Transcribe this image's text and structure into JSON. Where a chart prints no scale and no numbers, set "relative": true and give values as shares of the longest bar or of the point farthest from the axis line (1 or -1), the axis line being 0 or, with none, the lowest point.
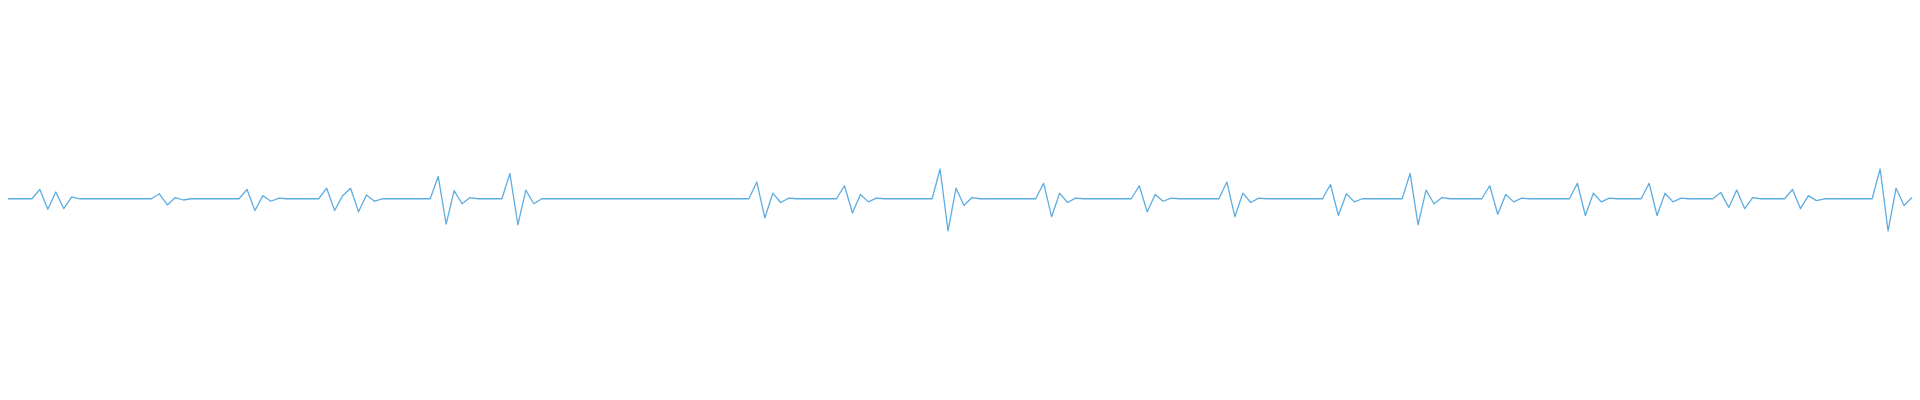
{
  "chart_data": {
    "type": "line",
    "relative": true,
    "color": "#5dade2",
    "grid": false,
    "legend": false,
    "marker": "none",
    "categories": [
      null,
      null,
      null,
      null,
      null,
      null,
      null,
      null,
      null,
      null,
      null,
      null,
      null,
      null,
      null,
      null,
      null,
      null,
      null,
      null,
      null,
      null,
      null,
      null,
      null,
      null,
      null,
      null,
      null,
      null,
      null,
      null,
      null,
      null,
      null,
      null,
      null,
      null,
      null,
      null,
      null,
      null,
      null,
      null,
      null,
      null,
      null,
      null,
      null,
      null,
      null,
      null,
      null,
      null,
      null,
      null,
      null,
      null,
      null,
      null,
      null,
      null,
      null,
      null,
      null,
      null,
      null,
      null,
      null,
      null,
      null,
      null,
      null,
      null,
      null,
      null,
      null,
      null,
      null,
      null,
      null,
      null,
      null,
      null,
      null,
      null,
      null,
      null,
      null,
      null,
      null,
      null,
      null,
      null,
      null,
      null,
      null,
      null,
      null,
      null,
      null,
      null,
      null,
      null,
      null,
      null,
      null,
      null,
      null,
      null,
      null,
      null,
      null,
      null,
      null,
      null,
      null,
      null,
      null,
      null,
      null,
      null,
      null,
      null,
      null,
      null,
      null,
      null,
      null,
      null,
      null,
      null,
      null,
      null,
      null,
      null,
      null,
      null,
      null,
      null,
      null,
      null,
      null,
      null,
      null,
      null,
      null,
      null,
      null,
      null,
      null,
      null,
      null,
      null,
      null,
      null,
      null,
      null,
      null,
      null,
      null,
      null,
      null,
      null,
      null,
      null,
      null,
      null,
      null,
      null,
      null,
      null,
      null,
      null,
      null,
      null,
      null,
      null,
      null,
      null,
      null,
      null,
      null,
      null,
      null,
      null,
      null,
      null,
      null,
      null,
      null,
      null,
      null,
      null,
      null,
      null,
      null,
      null,
      null,
      null,
      null,
      null,
      null,
      null,
      null,
      null,
      null,
      null,
      null,
      null,
      null,
      null,
      null,
      null,
      null,
      null,
      null,
      null,
      null,
      null,
      null,
      null,
      null,
      null,
      null,
      null,
      null,
      null,
      null,
      null,
      null,
      null,
      null,
      null,
      null,
      null,
      null,
      null,
      null,
      null
    ],
    "values": [
      0.52,
      0.52,
      0.52,
      0.52,
      0.67,
      0.35,
      0.63,
      0.36,
      0.55,
      0.52,
      0.52,
      0.52,
      0.52,
      0.52,
      0.52,
      0.52,
      0.52,
      0.52,
      0.52,
      0.6,
      0.42,
      0.54,
      0.5,
      0.52,
      0.52,
      0.52,
      0.52,
      0.52,
      0.52,
      0.52,
      0.67,
      0.33,
      0.57,
      0.48,
      0.53,
      0.52,
      0.52,
      0.52,
      0.52,
      0.52,
      0.69,
      0.33,
      0.57,
      0.69,
      0.31,
      0.58,
      0.48,
      0.52,
      0.52,
      0.52,
      0.52,
      0.52,
      0.52,
      0.52,
      0.88,
      0.11,
      0.65,
      0.44,
      0.54,
      0.52,
      0.52,
      0.52,
      0.52,
      0.93,
      0.1,
      0.66,
      0.44,
      0.52,
      0.52,
      0.52,
      0.52,
      0.52,
      0.52,
      0.52,
      0.52,
      0.52,
      0.52,
      0.52,
      0.52,
      0.52,
      0.52,
      0.52,
      0.52,
      0.52,
      0.52,
      0.52,
      0.52,
      0.52,
      0.52,
      0.52,
      0.52,
      0.52,
      0.52,
      0.52,
      0.79,
      0.21,
      0.61,
      0.46,
      0.53,
      0.52,
      0.52,
      0.52,
      0.52,
      0.52,
      0.52,
      0.73,
      0.29,
      0.59,
      0.47,
      0.53,
      0.52,
      0.52,
      0.52,
      0.52,
      0.52,
      0.52,
      0.52,
      1,
      0,
      0.69,
      0.41,
      0.54,
      0.52,
      0.52,
      0.52,
      0.52,
      0.52,
      0.52,
      0.52,
      0.52,
      0.77,
      0.23,
      0.61,
      0.46,
      0.53,
      0.52,
      0.52,
      0.52,
      0.52,
      0.52,
      0.52,
      0.52,
      0.73,
      0.31,
      0.59,
      0.48,
      0.53,
      0.52,
      0.52,
      0.52,
      0.52,
      0.52,
      0.52,
      0.79,
      0.23,
      0.61,
      0.46,
      0.53,
      0.52,
      0.52,
      0.52,
      0.52,
      0.52,
      0.52,
      0.52,
      0.52,
      0.75,
      0.25,
      0.6,
      0.47,
      0.52,
      0.52,
      0.52,
      0.52,
      0.52,
      0.52,
      0.93,
      0.1,
      0.66,
      0.44,
      0.54,
      0.52,
      0.52,
      0.52,
      0.52,
      0.52,
      0.73,
      0.27,
      0.59,
      0.47,
      0.53,
      0.52,
      0.52,
      0.52,
      0.52,
      0.52,
      0.52,
      0.77,
      0.25,
      0.61,
      0.47,
      0.53,
      0.52,
      0.52,
      0.52,
      0.52,
      0.77,
      0.25,
      0.61,
      0.47,
      0.53,
      0.52,
      0.52,
      0.52,
      0.52,
      0.62,
      0.38,
      0.66,
      0.36,
      0.54,
      0.52,
      0.52,
      0.52,
      0.52,
      0.67,
      0.36,
      0.57,
      0.49,
      0.52,
      0.52,
      0.52,
      0.52,
      0.52,
      0.52,
      0.52,
      1,
      0,
      0.69,
      0.41,
      0.54
    ]
  }
}
